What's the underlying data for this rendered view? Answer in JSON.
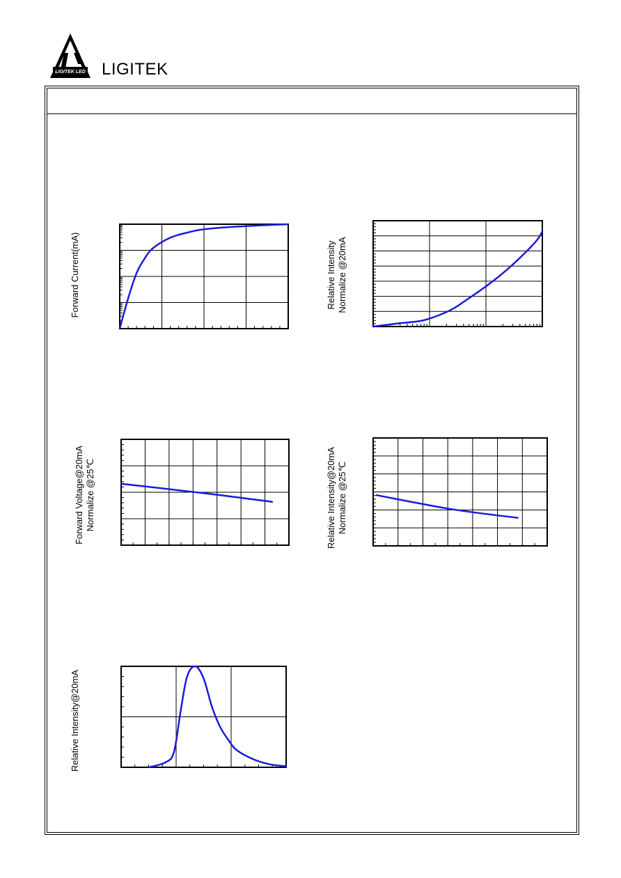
{
  "header": {
    "brand": "LIGITEK",
    "logo_text": "LIGITEK LED"
  },
  "colors": {
    "curve": "#1a1adc",
    "frame": "#000000"
  },
  "chart_data": [
    {
      "type": "line",
      "ylabel": "Forward Current(mA)",
      "x_scale": "linear",
      "y_scale": "log",
      "grid": true,
      "series": [
        {
          "x": [
            0.0,
            0.05,
            0.1,
            0.15,
            0.2,
            0.3,
            0.4,
            0.5,
            0.7,
            0.9,
            1.0
          ],
          "y": [
            -0.1,
            0.8,
            1.55,
            2.0,
            2.3,
            2.6,
            2.75,
            2.85,
            2.93,
            2.98,
            3.0
          ]
        }
      ]
    },
    {
      "type": "line",
      "ylabel": "Relative Intensity\nNormalize @20mA",
      "x_scale": "log",
      "y_scale": "linear",
      "grid": true,
      "series": [
        {
          "x": [
            0.0,
            0.15,
            0.3,
            0.45,
            0.55,
            0.7,
            0.8,
            0.9,
            0.97,
            1.0
          ],
          "y": [
            0.0,
            0.03,
            0.06,
            0.15,
            0.25,
            0.42,
            0.55,
            0.7,
            0.82,
            0.9
          ]
        }
      ]
    },
    {
      "type": "line",
      "ylabel": "Forward Voltage@20mA\nNormalize @25℃",
      "x_scale": "linear",
      "y_scale": "linear",
      "grid": true,
      "series": [
        {
          "x": [
            0.0,
            0.5,
            0.9
          ],
          "y": [
            0.58,
            0.49,
            0.41
          ]
        }
      ]
    },
    {
      "type": "line",
      "ylabel": "Relative Intensity@20mA\nNormalize @25℃",
      "x_scale": "linear",
      "y_scale": "linear",
      "grid": true,
      "series": [
        {
          "x": [
            0.02,
            0.45,
            0.83
          ],
          "y": [
            0.47,
            0.34,
            0.26
          ]
        }
      ]
    },
    {
      "type": "line",
      "ylabel": "Relative Intensity@20mA",
      "x_scale": "linear",
      "y_scale": "linear",
      "grid": true,
      "series": [
        {
          "x": [
            0.17,
            0.27,
            0.32,
            0.36,
            0.4,
            0.45,
            0.5,
            0.55,
            0.6,
            0.65,
            0.7,
            0.8,
            0.9,
            1.0
          ],
          "y": [
            0.0,
            0.05,
            0.15,
            0.55,
            0.9,
            1.0,
            0.88,
            0.6,
            0.4,
            0.27,
            0.17,
            0.08,
            0.03,
            0.01
          ]
        }
      ]
    }
  ]
}
